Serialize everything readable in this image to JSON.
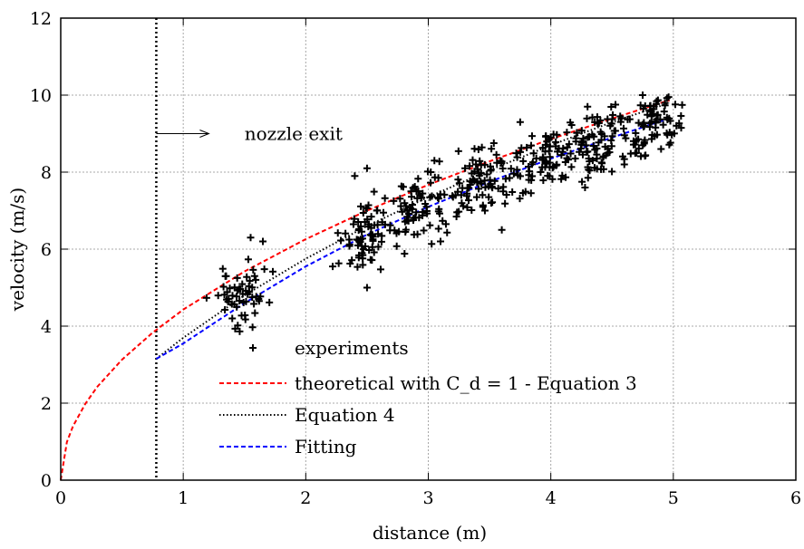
{
  "chart_data": {
    "type": "scatter",
    "title": "",
    "xlabel": "distance (m)",
    "ylabel": "velocity (m/s)",
    "xlim": [
      0,
      6
    ],
    "ylim": [
      0,
      12
    ],
    "xticks": [
      "0",
      "1",
      "2",
      "3",
      "4",
      "5",
      "6"
    ],
    "yticks": [
      "0",
      "2",
      "4",
      "6",
      "8",
      "10",
      "12"
    ],
    "grid": true,
    "legend_position": "bottom-center",
    "annotation": {
      "text": "nozzle exit",
      "x": 0.78
    },
    "series": [
      {
        "name": "experiments",
        "kind": "scatter",
        "marker": "plus",
        "color": "#000000",
        "clusters": [
          {
            "xc": 1.48,
            "xs": 0.11,
            "yc": 4.75,
            "n": 55
          },
          {
            "xc": 2.48,
            "xs": 0.1,
            "yc": 6.35,
            "n": 70
          },
          {
            "xc": 2.95,
            "xs": 0.13,
            "yc": 7.05,
            "n": 75
          },
          {
            "xc": 3.45,
            "xs": 0.14,
            "yc": 7.75,
            "n": 85
          },
          {
            "xc": 3.95,
            "xs": 0.14,
            "yc": 8.25,
            "n": 80
          },
          {
            "xc": 4.4,
            "xs": 0.12,
            "yc": 8.75,
            "n": 75
          },
          {
            "xc": 4.85,
            "xs": 0.1,
            "yc": 9.25,
            "n": 75
          }
        ],
        "y_spread": 0.6,
        "extra_points": [
          [
            1.35,
            5.3
          ],
          [
            1.55,
            6.3
          ],
          [
            1.65,
            6.2
          ],
          [
            1.4,
            4.2
          ],
          [
            2.5,
            8.1
          ],
          [
            2.4,
            7.9
          ],
          [
            2.5,
            5.0
          ],
          [
            3.05,
            8.3
          ],
          [
            3.3,
            8.1
          ],
          [
            3.1,
            6.2
          ],
          [
            3.75,
            9.3
          ],
          [
            4.0,
            8.9
          ],
          [
            4.3,
            9.7
          ],
          [
            4.75,
            10.0
          ],
          [
            3.6,
            6.5
          ],
          [
            4.6,
            8.2
          ],
          [
            4.7,
            8.5
          ],
          [
            4.9,
            8.6
          ]
        ]
      },
      {
        "name": "theoretical with C_d = 1 - Equation 3",
        "kind": "line",
        "color": "#ff0000",
        "dash": "dashed",
        "x": [
          0,
          0.05,
          0.1,
          0.2,
          0.3,
          0.5,
          0.75,
          1,
          1.5,
          2,
          2.5,
          3,
          3.5,
          4,
          4.5,
          4.97
        ],
        "y": [
          0,
          0.99,
          1.4,
          1.98,
          2.43,
          3.13,
          3.83,
          4.43,
          5.42,
          6.26,
          7.0,
          7.67,
          8.28,
          8.86,
          9.39,
          9.87
        ]
      },
      {
        "name": "Equation 4",
        "kind": "line",
        "color": "#000000",
        "dash": "dotted",
        "x": [
          0.78,
          1,
          1.5,
          2,
          2.5,
          3,
          3.5,
          4,
          4.5,
          4.97
        ],
        "y": [
          3.15,
          3.7,
          4.8,
          5.75,
          6.6,
          7.35,
          8.05,
          8.7,
          9.3,
          9.8
        ]
      },
      {
        "name": "Fitting",
        "kind": "line",
        "color": "#0000ff",
        "dash": "dashed",
        "x": [
          0.78,
          1,
          1.5,
          2,
          2.5,
          3,
          3.5,
          4,
          4.5,
          4.97
        ],
        "y": [
          3.15,
          3.55,
          4.6,
          5.55,
          6.38,
          7.1,
          7.75,
          8.35,
          8.9,
          9.4
        ]
      }
    ]
  }
}
